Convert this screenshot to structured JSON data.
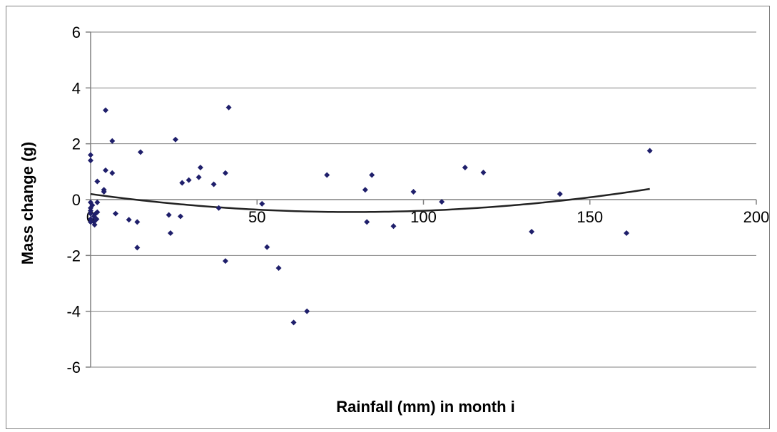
{
  "chart_data": {
    "type": "scatter",
    "title": "",
    "xlabel": "Rainfall (mm) in month i",
    "ylabel": "Mass change (g)",
    "xlim": [
      0,
      200
    ],
    "ylim": [
      -6,
      6
    ],
    "x_ticks": [
      "0",
      "50",
      "100",
      "150",
      "200"
    ],
    "y_ticks": [
      "6",
      "4",
      "2",
      "0",
      "-2",
      "-4",
      "-6"
    ],
    "grid": "horizontal",
    "legend": "none",
    "marker_color": "#1f1f6b",
    "trend_color": "#222222",
    "series": [
      {
        "points": [
          [
            0,
            1.6
          ],
          [
            0,
            1.4
          ],
          [
            0,
            -0.1
          ],
          [
            0,
            -0.3
          ],
          [
            0,
            -0.4
          ],
          [
            0,
            -0.5
          ],
          [
            0,
            -0.7
          ],
          [
            0,
            -0.8
          ],
          [
            0.5,
            -0.2
          ],
          [
            1,
            -0.6
          ],
          [
            1,
            -0.8
          ],
          [
            1.2,
            -0.9
          ],
          [
            1.5,
            -0.5
          ],
          [
            1.8,
            -0.7
          ],
          [
            2,
            -0.1
          ],
          [
            2,
            -0.45
          ],
          [
            2,
            0.65
          ],
          [
            4,
            0.35
          ],
          [
            4,
            0.28
          ],
          [
            4.5,
            3.2
          ],
          [
            4.5,
            1.05
          ],
          [
            6.5,
            2.1
          ],
          [
            6.5,
            0.95
          ],
          [
            7.5,
            -0.5
          ],
          [
            11.5,
            -0.72
          ],
          [
            14,
            -0.8
          ],
          [
            14,
            -1.72
          ],
          [
            15,
            1.7
          ],
          [
            23.5,
            -0.55
          ],
          [
            24,
            -1.2
          ],
          [
            25.5,
            2.15
          ],
          [
            27,
            -0.6
          ],
          [
            27.5,
            0.6
          ],
          [
            29.5,
            0.7
          ],
          [
            32.5,
            0.8
          ],
          [
            33,
            1.15
          ],
          [
            37,
            0.55
          ],
          [
            38.5,
            -0.3
          ],
          [
            40.5,
            0.95
          ],
          [
            40.5,
            -2.2
          ],
          [
            41.5,
            3.3
          ],
          [
            51.5,
            -0.15
          ],
          [
            53,
            -1.7
          ],
          [
            56.5,
            -2.45
          ],
          [
            61,
            -4.4
          ],
          [
            65,
            -4.0
          ],
          [
            71,
            0.88
          ],
          [
            82.5,
            0.35
          ],
          [
            83,
            -0.8
          ],
          [
            84.5,
            0.88
          ],
          [
            91,
            -0.95
          ],
          [
            97,
            0.28
          ],
          [
            105.5,
            -0.08
          ],
          [
            112.5,
            1.15
          ],
          [
            118,
            0.97
          ],
          [
            132.5,
            -1.15
          ],
          [
            141,
            0.2
          ],
          [
            161,
            -1.2
          ],
          [
            168,
            1.75
          ]
        ]
      }
    ],
    "trendline": {
      "type": "polynomial",
      "x_range": [
        0,
        168
      ],
      "coefficients": [
        0.2,
        -0.01637,
        0.0001039
      ]
    }
  }
}
